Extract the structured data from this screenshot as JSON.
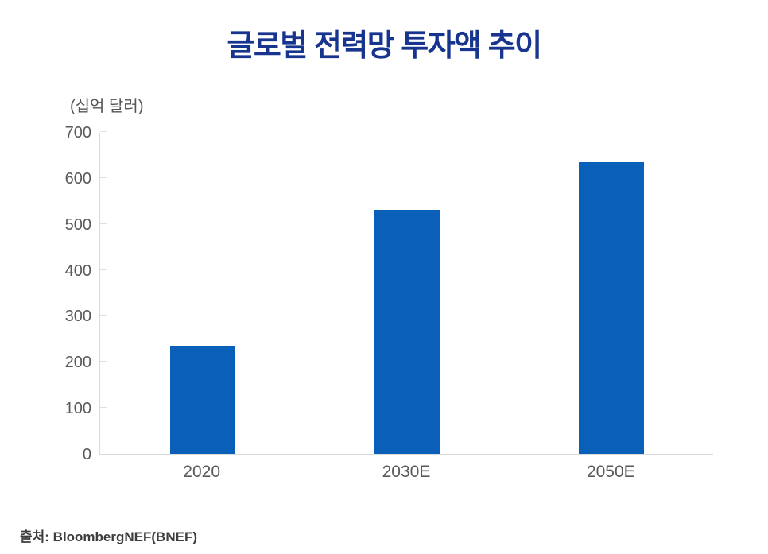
{
  "chart_data": {
    "type": "bar",
    "title": "글로벌 전력망 투자액 추이",
    "unit_label": "(십억 달러)",
    "categories": [
      "2020",
      "2030E",
      "2050E"
    ],
    "values": [
      235,
      530,
      635
    ],
    "xlabel": "",
    "ylabel": "(십억 달러)",
    "ylim": [
      0,
      700
    ],
    "yticks": [
      0,
      100,
      200,
      300,
      400,
      500,
      600,
      700
    ],
    "grid": false,
    "legend": false,
    "bar_color": "#0A5FB8"
  },
  "source": "출처: BloombergNEF(BNEF)",
  "colors": {
    "title": "#17348F",
    "bar": "#0A5FB8",
    "axis_line": "#D9D9D9",
    "tick_mark": "#E0E0E0",
    "tick_label": "#595959",
    "unit_label": "#555555",
    "source_text": "#3D3D3D"
  }
}
